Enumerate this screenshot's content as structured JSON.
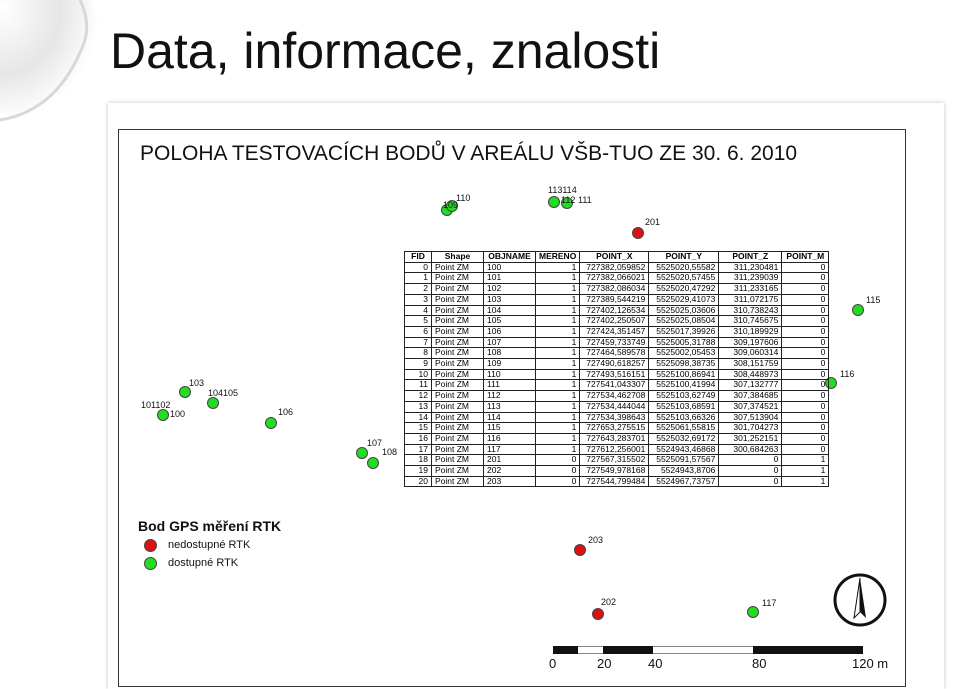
{
  "slide_title": "Data, informace, znalosti",
  "map": {
    "title": "POLOHA TESTOVACÍCH BODŮ V AREÁLU VŠB-TUO ZE 30. 6. 2010",
    "colors": {
      "available": "#22dd22",
      "unavailable": "#dd1111"
    },
    "point_labels": {
      "p109": "109",
      "p110": "110",
      "p113114": "113114",
      "p112": "112",
      "p111": "111",
      "p201": "201",
      "p115": "115",
      "p116": "116",
      "p103": "103",
      "p104105": "104105",
      "p101102": "101102",
      "p100": "100",
      "p106": "106",
      "p107": "107",
      "p108": "108",
      "p203": "203",
      "p202": "202",
      "p117": "117"
    }
  },
  "table": {
    "headers": [
      "FID",
      "Shape",
      "OBJNAME",
      "MERENO",
      "POINT_X",
      "POINT_Y",
      "POINT_Z",
      "POINT_M"
    ],
    "rows": [
      [
        "0",
        "Point ZM",
        "100",
        "1",
        "727382,059852",
        "5525020,55582",
        "311,230481",
        "0"
      ],
      [
        "1",
        "Point ZM",
        "101",
        "1",
        "727382,066021",
        "5525020,57455",
        "311,239039",
        "0"
      ],
      [
        "2",
        "Point ZM",
        "102",
        "1",
        "727382,086034",
        "5525020,47292",
        "311,233165",
        "0"
      ],
      [
        "3",
        "Point ZM",
        "103",
        "1",
        "727389,544219",
        "5525029,41073",
        "311,072175",
        "0"
      ],
      [
        "4",
        "Point ZM",
        "104",
        "1",
        "727402,126534",
        "5525025,03606",
        "310,738243",
        "0"
      ],
      [
        "5",
        "Point ZM",
        "105",
        "1",
        "727402,250507",
        "5525025,08504",
        "310,745675",
        "0"
      ],
      [
        "6",
        "Point ZM",
        "106",
        "1",
        "727424,351457",
        "5525017,39926",
        "310,189929",
        "0"
      ],
      [
        "7",
        "Point ZM",
        "107",
        "1",
        "727459,733749",
        "5525005,31788",
        "309,197606",
        "0"
      ],
      [
        "8",
        "Point ZM",
        "108",
        "1",
        "727464,589578",
        "5525002,05453",
        "309,060314",
        "0"
      ],
      [
        "9",
        "Point ZM",
        "109",
        "1",
        "727490,618257",
        "5525098,38735",
        "308,151759",
        "0"
      ],
      [
        "10",
        "Point ZM",
        "110",
        "1",
        "727493,516151",
        "5525100,86941",
        "308,448973",
        "0"
      ],
      [
        "11",
        "Point ZM",
        "111",
        "1",
        "727541,043307",
        "5525100,41994",
        "307,132777",
        "0"
      ],
      [
        "12",
        "Point ZM",
        "112",
        "1",
        "727534,462708",
        "5525103,62749",
        "307,384685",
        "0"
      ],
      [
        "13",
        "Point ZM",
        "113",
        "1",
        "727534,444044",
        "5525103,68591",
        "307,374521",
        "0"
      ],
      [
        "14",
        "Point ZM",
        "114",
        "1",
        "727534,398643",
        "5525103,66326",
        "307,513904",
        "0"
      ],
      [
        "15",
        "Point ZM",
        "115",
        "1",
        "727653,275515",
        "5525061,55815",
        "301,704273",
        "0"
      ],
      [
        "16",
        "Point ZM",
        "116",
        "1",
        "727643,283701",
        "5525032,69172",
        "301,252151",
        "0"
      ],
      [
        "17",
        "Point ZM",
        "117",
        "1",
        "727612,256001",
        "5524943,46868",
        "300,684263",
        "0"
      ],
      [
        "18",
        "Point ZM",
        "201",
        "0",
        "727567,315502",
        "5525091,57567",
        "0",
        "1"
      ],
      [
        "19",
        "Point ZM",
        "202",
        "0",
        "727549,978168",
        "5524943,8706",
        "0",
        "1"
      ],
      [
        "20",
        "Point ZM",
        "203",
        "0",
        "727544,799484",
        "5524967,73757",
        "0",
        "1"
      ]
    ]
  },
  "legend": {
    "title": "Bod GPS měření RTK",
    "unavailable": "nedostupné RTK",
    "available": "dostupné RTK"
  },
  "scale": {
    "labels": [
      "0",
      "20",
      "40",
      "80",
      "120 m"
    ]
  }
}
